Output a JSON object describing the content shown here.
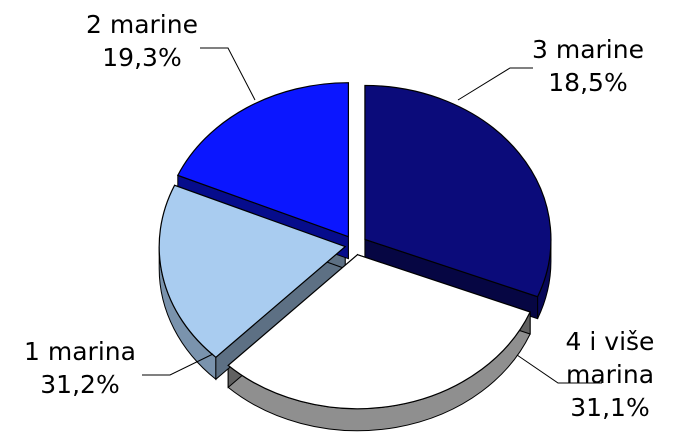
{
  "chart_data": {
    "type": "pie",
    "variant": "3d-exploded",
    "slices": [
      {
        "label": "4 i više marina",
        "display_lines": [
          "4 i više",
          "marina"
        ],
        "value": 31.1,
        "value_label": "31,1%",
        "color": "#0b0b7a"
      },
      {
        "label": "1 marina",
        "display_lines": [
          "1 marina"
        ],
        "value": 31.2,
        "value_label": "31,2%",
        "color": "#ffffff"
      },
      {
        "label": "2 marine",
        "display_lines": [
          "2 marine"
        ],
        "value": 19.3,
        "value_label": "19,3%",
        "color": "#a9ccf0"
      },
      {
        "label": "3 marine",
        "display_lines": [
          "3 marine"
        ],
        "value": 18.5,
        "value_label": "18,5%",
        "color": "#0b16ff"
      }
    ],
    "title": "",
    "legend": "none",
    "data_labels": "outside-with-leader-lines"
  }
}
